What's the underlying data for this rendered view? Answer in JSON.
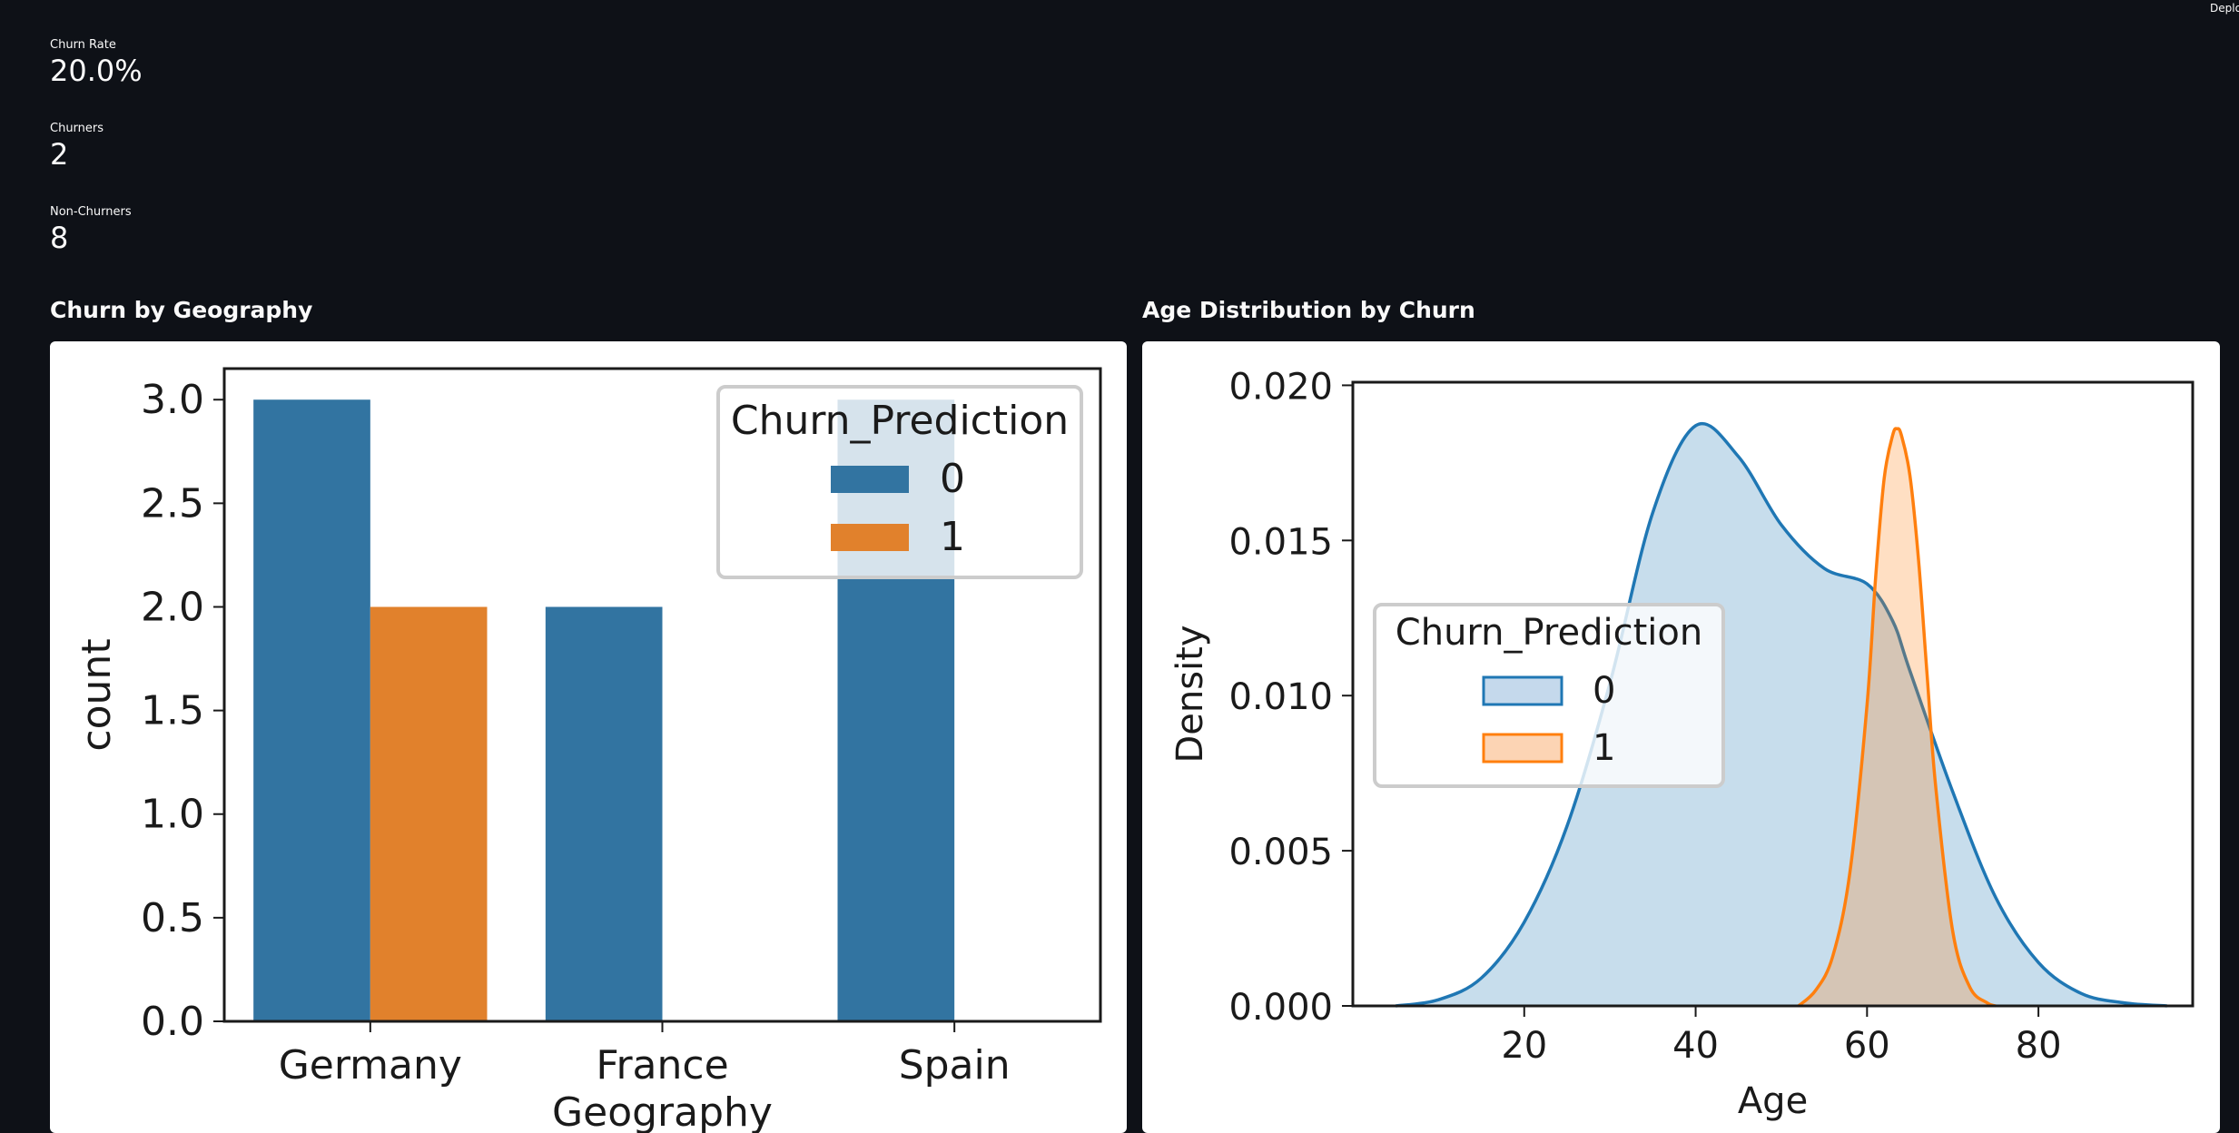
{
  "header": {
    "deploy_label": "Deplo"
  },
  "metrics": [
    {
      "label": "Churn Rate",
      "value": "20.0%"
    },
    {
      "label": "Churners",
      "value": "2"
    },
    {
      "label": "Non-Churners",
      "value": "8"
    }
  ],
  "sections": {
    "geography_title": "Churn by Geography",
    "age_title": "Age Distribution by Churn"
  },
  "chart_data": [
    {
      "type": "bar",
      "title": "",
      "xlabel": "Geography",
      "ylabel": "count",
      "categories": [
        "Germany",
        "France",
        "Spain"
      ],
      "series": [
        {
          "name": "0",
          "values": [
            3,
            2,
            3
          ],
          "color": "#3274a1"
        },
        {
          "name": "1",
          "values": [
            2,
            0,
            0
          ],
          "color": "#e1812c"
        }
      ],
      "ylim": [
        0,
        3.15
      ],
      "yticks": [
        "0.0",
        "0.5",
        "1.0",
        "1.5",
        "2.0",
        "2.5",
        "3.0"
      ],
      "legend_title": "Churn_Prediction",
      "legend_position": "top-right",
      "grid": false
    },
    {
      "type": "area",
      "title": "",
      "xlabel": "Age",
      "ylabel": "Density",
      "xlim": [
        0,
        98
      ],
      "ylim": [
        0,
        0.0201
      ],
      "xticks": [
        "20",
        "40",
        "60",
        "80"
      ],
      "yticks": [
        "0.000",
        "0.005",
        "0.010",
        "0.015",
        "0.020"
      ],
      "series": [
        {
          "name": "0",
          "color": "#1f77b4",
          "fill": "#c5d9ec",
          "x": [
            5,
            10,
            15,
            20,
            25,
            30,
            35,
            40,
            45,
            50,
            55,
            60,
            63,
            65,
            70,
            75,
            80,
            85,
            90,
            95
          ],
          "y": [
            0.0,
            0.0002,
            0.0009,
            0.0027,
            0.0058,
            0.0104,
            0.0159,
            0.0187,
            0.0177,
            0.0155,
            0.0141,
            0.0136,
            0.0124,
            0.0108,
            0.0069,
            0.0035,
            0.0014,
            0.0004,
            0.0001,
            0.0
          ]
        },
        {
          "name": "1",
          "color": "#ff7f0e",
          "fill": "#fcd4b4",
          "x": [
            52,
            54,
            56,
            58,
            60,
            61,
            62,
            63,
            63.5,
            64,
            65,
            66,
            67,
            68,
            70,
            72,
            74,
            75
          ],
          "y": [
            0.0,
            0.0005,
            0.0016,
            0.0043,
            0.0097,
            0.0138,
            0.017,
            0.0184,
            0.0186,
            0.0184,
            0.0171,
            0.0144,
            0.0107,
            0.0071,
            0.0024,
            0.0006,
            0.0001,
            0.0
          ]
        }
      ],
      "legend_title": "Churn_Prediction",
      "legend_position": "center-left",
      "grid": false
    }
  ]
}
